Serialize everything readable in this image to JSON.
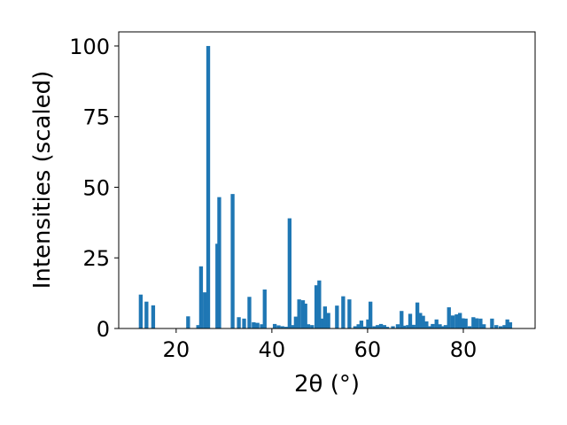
{
  "chart_data": {
    "type": "bar",
    "xlabel": "2θ (°)",
    "ylabel": "Intensities (scaled)",
    "xlim": [
      8,
      95
    ],
    "ylim": [
      0,
      105
    ],
    "xticks": [
      20,
      40,
      60,
      80
    ],
    "yticks": [
      0,
      25,
      50,
      75,
      100
    ],
    "bar_width": 0.8,
    "grid": false,
    "bar_color": "#1f77b4",
    "x": [
      12.6,
      13.8,
      15.2,
      22.5,
      24.6,
      25.2,
      26.0,
      26.7,
      28.6,
      29.0,
      31.8,
      33.1,
      34.2,
      35.3,
      36.2,
      37.0,
      37.9,
      38.5,
      40.6,
      41.4,
      42.2,
      43.0,
      43.7,
      44.5,
      45.0,
      45.7,
      46.5,
      47.0,
      47.6,
      48.4,
      49.3,
      49.9,
      50.5,
      51.1,
      51.8,
      53.6,
      54.9,
      56.2,
      57.4,
      58.1,
      58.7,
      59.4,
      60.1,
      60.6,
      61.4,
      62.1,
      62.8,
      63.5,
      64.1,
      65.3,
      66.3,
      67.1,
      67.6,
      68.4,
      68.9,
      69.6,
      70.4,
      71.0,
      71.6,
      72.3,
      73.0,
      73.6,
      74.4,
      75.1,
      75.7,
      76.3,
      77.0,
      77.8,
      78.6,
      79.3,
      79.9,
      80.5,
      81.3,
      82.1,
      82.8,
      83.6,
      84.3,
      86.0,
      86.9,
      87.8,
      88.6,
      89.2,
      89.8
    ],
    "values": [
      12,
      9.5,
      8.2,
      4.3,
      1.2,
      22,
      12.8,
      100,
      30,
      46.5,
      47.6,
      4,
      3.5,
      11.2,
      2.2,
      2,
      1.5,
      13.8,
      1.6,
      1.1,
      0.8,
      0.6,
      39,
      1.2,
      4.2,
      10.3,
      10,
      8.8,
      1.5,
      1.2,
      15.3,
      17,
      3.5,
      7.8,
      5.5,
      8.1,
      11.4,
      10.3,
      0.8,
      1.5,
      2.8,
      0.7,
      3.2,
      9.5,
      0.8,
      1.2,
      1.6,
      1.2,
      0.6,
      0.8,
      1.5,
      6.2,
      1,
      1.2,
      5.2,
      1.3,
      9.2,
      5.5,
      4.5,
      2.5,
      0.8,
      1.6,
      3.2,
      1.5,
      0.8,
      1.2,
      7.5,
      4.6,
      5,
      5.5,
      3.6,
      3.5,
      0.8,
      4,
      3.6,
      3.5,
      1.5,
      3.5,
      1.2,
      0.8,
      1.2,
      3.2,
      2.2
    ]
  }
}
